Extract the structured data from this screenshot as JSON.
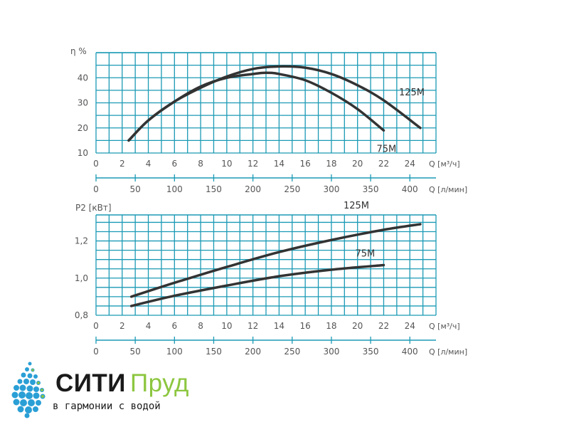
{
  "chart_data": [
    {
      "type": "line",
      "ylabel": "η %",
      "yticks": [
        "10",
        "20",
        "30",
        "40"
      ],
      "ylim": [
        10,
        50
      ],
      "xlabel": "Q [м³/ч]",
      "xticks": [
        "0",
        "2",
        "4",
        "6",
        "8",
        "10",
        "12",
        "14",
        "16",
        "18",
        "20",
        "22",
        "24"
      ],
      "xlim": [
        0,
        26
      ],
      "x2label": "Q [л/мин]",
      "x2ticks": [
        "0",
        "50",
        "100",
        "150",
        "200",
        "250",
        "300",
        "350",
        "400"
      ],
      "grid": true,
      "series": [
        {
          "name": "125M",
          "x": [
            2.5,
            4,
            6,
            8,
            10,
            12,
            14,
            16,
            18,
            20,
            22,
            24.8
          ],
          "y": [
            15,
            23,
            30.5,
            36,
            40.5,
            43.5,
            44.5,
            44,
            41.5,
            37,
            31,
            20
          ]
        },
        {
          "name": "75M",
          "x": [
            2.5,
            4,
            6,
            8,
            10,
            12,
            13,
            14,
            16,
            18,
            20,
            22
          ],
          "y": [
            15,
            23,
            30.5,
            36.5,
            40,
            41.5,
            42,
            41.5,
            39,
            34,
            27.5,
            19
          ]
        }
      ]
    },
    {
      "type": "line",
      "ylabel": "P2 [кВт]",
      "yticks": [
        "0,8",
        "1,0",
        "1,2"
      ],
      "ylim": [
        0.8,
        1.34
      ],
      "xlabel": "Q [м³/ч]",
      "xticks": [
        "0",
        "2",
        "4",
        "6",
        "8",
        "10",
        "12",
        "14",
        "16",
        "18",
        "20",
        "22",
        "24"
      ],
      "xlim": [
        0,
        26
      ],
      "x2label": "Q [л/мин]",
      "x2ticks": [
        "0",
        "50",
        "100",
        "150",
        "200",
        "250",
        "300",
        "350",
        "400"
      ],
      "grid": true,
      "series": [
        {
          "name": "125M",
          "x": [
            2.7,
            6,
            10,
            14,
            18,
            22,
            24.8
          ],
          "y": [
            0.9,
            0.975,
            1.06,
            1.14,
            1.205,
            1.26,
            1.29
          ]
        },
        {
          "name": "75M",
          "x": [
            2.7,
            6,
            10,
            14,
            18,
            22
          ],
          "y": [
            0.85,
            0.905,
            0.96,
            1.01,
            1.045,
            1.07
          ]
        }
      ]
    }
  ],
  "brand": {
    "name_part1": "СИТИ",
    "name_part2": "Пруд",
    "slogan": "в гармонии с водой",
    "colors": {
      "dark": "#1a1a1a",
      "green": "#8cc63f",
      "drops": "#2a9fd6",
      "grid": "#1b9ab5"
    }
  }
}
